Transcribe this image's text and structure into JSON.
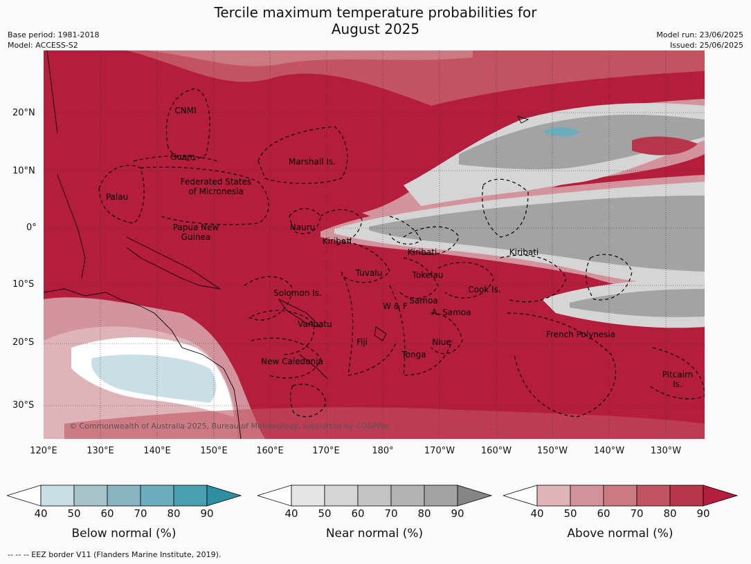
{
  "title_line1": "Tercile maximum temperature probabilities for",
  "title_line2": "August 2025",
  "meta_left": [
    "Base period: 1981-2018",
    "Model: ACCESS-S2"
  ],
  "meta_right": [
    "Model run: 23/06/2025",
    "Issued: 25/06/2025"
  ],
  "lat_labels": [
    "20°N",
    "10°N",
    "0°",
    "10°S",
    "20°S",
    "30°S"
  ],
  "lon_labels": [
    "120°E",
    "130°E",
    "140°E",
    "150°E",
    "160°E",
    "170°E",
    "180°",
    "170°W",
    "160°W",
    "150°W",
    "140°W",
    "130°W"
  ],
  "regions": {
    "cnmi": "CNMI",
    "guam": "Guam",
    "marshall": "Marshall Is.",
    "palau": "Palau",
    "fsm_1": "Federated States",
    "fsm_2": "of Micronesia",
    "png_1": "Papua New",
    "png_2": "Guinea",
    "nauru": "Nauru",
    "kiribati_w": "Kiribati",
    "kiribati_c": "Kiribati",
    "kiribati_e": "Kiribati",
    "tuvalu": "Tuvalu",
    "tokelau": "Tokelau",
    "cook": "Cook Is.",
    "solomon": "Solomon Is.",
    "wf": "W & F",
    "samoa": "Samoa",
    "asamoa": "A. Samoa",
    "vanuatu": "Vanuatu",
    "fiji": "Fiji",
    "niue": "Niue",
    "tonga": "Tonga",
    "frpoly": "French Polynesia",
    "newcal": "New Caledonia",
    "pitcairn_1": "Pitcairn",
    "pitcairn_2": "Is."
  },
  "copyright": "© Commonwealth of Australia 2025, Bureau of Meteorology, supported by COSPPac",
  "colorbars": [
    {
      "label": "Below normal (%)",
      "ticks": [
        "40",
        "50",
        "60",
        "70",
        "80",
        "90"
      ],
      "colors": [
        "#c9dfe5",
        "#a6c4ca",
        "#88b4bf",
        "#6cadbd",
        "#489fb0",
        "#2e8fa3"
      ]
    },
    {
      "label": "Near normal (%)",
      "ticks": [
        "40",
        "50",
        "60",
        "70",
        "80",
        "90"
      ],
      "colors": [
        "#e5e5e5",
        "#d5d5d5",
        "#c4c4c4",
        "#b3b3b3",
        "#a3a3a3",
        "#858585"
      ]
    },
    {
      "label": "Above normal (%)",
      "ticks": [
        "40",
        "50",
        "60",
        "70",
        "80",
        "90"
      ],
      "colors": [
        "#deb4b9",
        "#d3939c",
        "#cb7a82",
        "#c25462",
        "#b83649",
        "#b41d3c"
      ]
    }
  ],
  "footnote": "--  --  -- EEZ border V11 (Flanders Marine Institute, 2019).",
  "colors": {
    "above_strong": "#b41d3c",
    "above_mid": "#c25462",
    "above_light": "#d3939c",
    "near_light": "#d5d5d5",
    "near_mid": "#a3a3a3",
    "below_light": "#c9dfe5"
  }
}
